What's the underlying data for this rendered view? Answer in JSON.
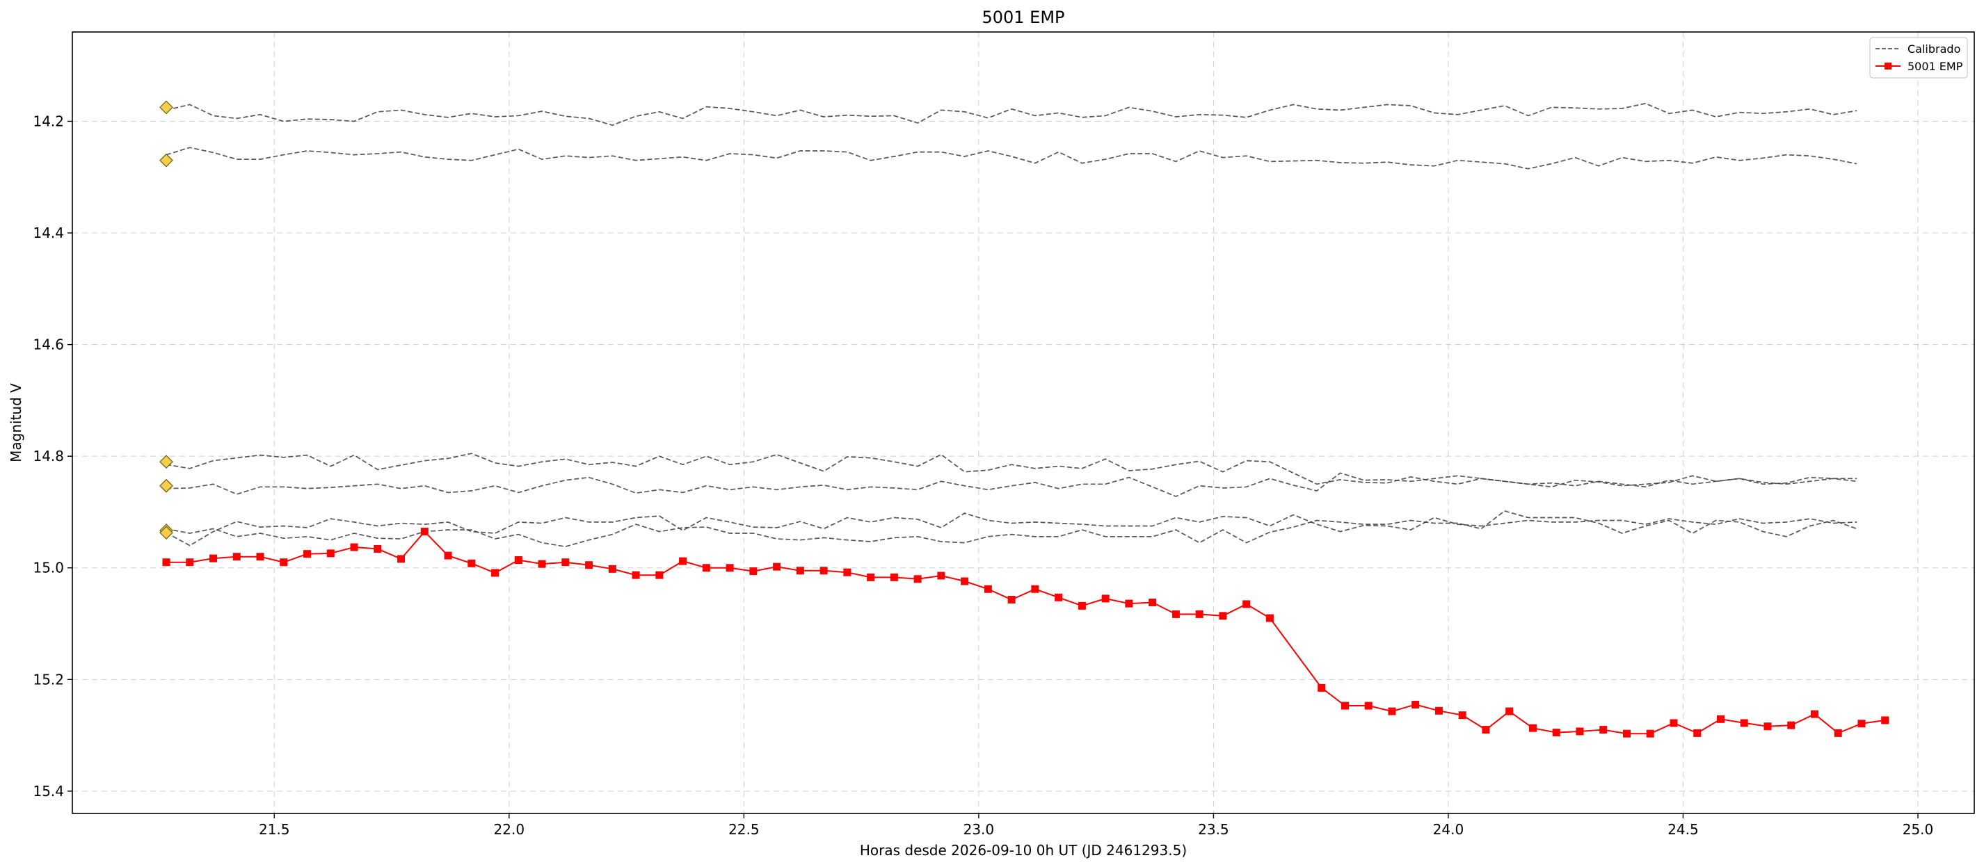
{
  "chart_data": {
    "type": "line",
    "title": "5001 EMP",
    "xlabel": "Horas desde 2026-09-10 0h UT (JD 2461293.5)",
    "ylabel": "Magnitud V",
    "xlim": [
      21.07,
      25.12
    ],
    "ylim": [
      14.04,
      15.44
    ],
    "y_inverted": true,
    "grid": true,
    "legend_position": "top-right",
    "xticks": [
      21.5,
      22.0,
      22.5,
      23.0,
      23.5,
      24.0,
      24.5,
      25.0
    ],
    "xtick_labels": [
      "21.5",
      "22.0",
      "22.5",
      "23.0",
      "23.5",
      "24.0",
      "24.5",
      "25.0"
    ],
    "yticks": [
      14.2,
      14.4,
      14.6,
      14.8,
      15.0,
      15.2,
      15.4
    ],
    "ytick_labels": [
      "14.2",
      "14.4",
      "14.6",
      "14.8",
      "15.0",
      "15.2",
      "15.4"
    ],
    "legend": [
      {
        "label": "Calibrado",
        "style": "dashed",
        "color": "#555555"
      },
      {
        "label": "5001 EMP",
        "style": "solid-square",
        "color": "#ff0000"
      }
    ],
    "x_start": 21.27,
    "x_step": 0.05,
    "target_series": {
      "name": "5001 EMP",
      "color": "#ff0000",
      "x": [
        21.27,
        21.32,
        21.37,
        21.42,
        21.47,
        21.52,
        21.57,
        21.62,
        21.67,
        21.72,
        21.77,
        21.82,
        21.87,
        21.92,
        21.97,
        22.02,
        22.07,
        22.12,
        22.17,
        22.22,
        22.27,
        22.32,
        22.37,
        22.42,
        22.47,
        22.52,
        22.57,
        22.62,
        22.67,
        22.72,
        22.77,
        22.82,
        22.87,
        22.92,
        22.97,
        23.02,
        23.07,
        23.12,
        23.17,
        23.22,
        23.27,
        23.32,
        23.37,
        23.42,
        23.47,
        23.52,
        23.57,
        23.62,
        23.73,
        23.78,
        23.83,
        23.88,
        23.93,
        23.98,
        24.03,
        24.08,
        24.13,
        24.18,
        24.23,
        24.28,
        24.33,
        24.38,
        24.43,
        24.48,
        24.53,
        24.58,
        24.63,
        24.68,
        24.73,
        24.78,
        24.83,
        24.88,
        24.93
      ],
      "y": [
        14.99,
        14.99,
        14.983,
        14.98,
        14.98,
        14.99,
        14.975,
        14.974,
        14.963,
        14.966,
        14.984,
        14.935,
        14.978,
        14.992,
        15.009,
        14.986,
        14.993,
        14.99,
        14.995,
        15.002,
        15.013,
        15.013,
        14.988,
        15.0,
        15.0,
        15.006,
        14.998,
        15.005,
        15.005,
        15.008,
        15.017,
        15.017,
        15.02,
        15.014,
        15.024,
        15.038,
        15.057,
        15.038,
        15.053,
        15.068,
        15.055,
        15.064,
        15.062,
        15.083,
        15.083,
        15.086,
        15.065,
        15.09,
        15.215,
        15.247,
        15.247,
        15.257,
        15.245,
        15.256,
        15.264,
        15.29,
        15.257,
        15.287,
        15.295,
        15.293,
        15.29,
        15.297,
        15.297,
        15.278,
        15.296,
        15.271,
        15.278,
        15.284,
        15.282,
        15.262,
        15.296,
        15.279,
        15.273
      ]
    },
    "calibrated_series": [
      {
        "name": "",
        "start_marker": 14.175,
        "y": [
          14.18,
          14.17,
          14.19,
          14.195,
          14.188,
          14.2,
          14.196,
          14.197,
          14.2,
          14.183,
          14.18,
          14.188,
          14.193,
          14.186,
          14.192,
          14.19,
          14.182,
          14.191,
          14.195,
          14.207,
          14.191,
          14.183,
          14.195,
          14.174,
          14.177,
          14.183,
          14.19,
          14.18,
          14.192,
          14.189,
          14.191,
          14.19,
          14.203,
          14.18,
          14.183,
          14.194,
          14.178,
          14.19,
          14.185,
          14.193,
          14.19,
          14.175,
          14.182,
          14.192,
          14.188,
          14.189,
          14.193,
          14.18,
          14.17,
          14.178,
          14.18,
          14.175,
          14.17,
          14.172,
          14.185,
          14.188,
          14.18,
          14.172,
          14.19,
          14.175,
          14.176,
          14.178,
          14.177,
          14.168,
          14.186,
          14.18,
          14.192,
          14.184,
          14.186,
          14.183,
          14.178,
          14.188,
          14.181
        ]
      },
      {
        "name": "",
        "start_marker": 14.27,
        "y": [
          14.26,
          14.247,
          14.256,
          14.268,
          14.268,
          14.26,
          14.253,
          14.256,
          14.26,
          14.258,
          14.255,
          14.264,
          14.268,
          14.27,
          14.26,
          14.25,
          14.268,
          14.262,
          14.265,
          14.262,
          14.27,
          14.267,
          14.264,
          14.27,
          14.258,
          14.26,
          14.266,
          14.253,
          14.253,
          14.255,
          14.27,
          14.263,
          14.255,
          14.255,
          14.263,
          14.253,
          14.263,
          14.275,
          14.255,
          14.275,
          14.268,
          14.258,
          14.258,
          14.272,
          14.253,
          14.265,
          14.262,
          14.272,
          14.271,
          14.27,
          14.274,
          14.275,
          14.273,
          14.278,
          14.28,
          14.27,
          14.273,
          14.276,
          14.285,
          14.276,
          14.265,
          14.28,
          14.265,
          14.272,
          14.27,
          14.275,
          14.264,
          14.27,
          14.266,
          14.26,
          14.262,
          14.268,
          14.276
        ]
      },
      {
        "name": "",
        "start_marker": 14.81,
        "y": [
          14.815,
          14.822,
          14.808,
          14.803,
          14.798,
          14.802,
          14.798,
          14.818,
          14.798,
          14.824,
          14.816,
          14.808,
          14.804,
          14.795,
          14.812,
          14.818,
          14.81,
          14.805,
          14.815,
          14.811,
          14.818,
          14.8,
          14.815,
          14.8,
          14.815,
          14.81,
          14.797,
          14.812,
          14.827,
          14.801,
          14.803,
          14.81,
          14.818,
          14.797,
          14.828,
          14.825,
          14.815,
          14.822,
          14.818,
          14.822,
          14.805,
          14.826,
          14.823,
          14.815,
          14.809,
          14.828,
          14.808,
          14.81,
          14.83,
          14.85,
          14.842,
          14.847,
          14.848,
          14.837,
          14.845,
          14.85,
          14.84,
          14.845,
          14.85,
          14.855,
          14.843,
          14.846,
          14.853,
          14.85,
          14.847,
          14.835,
          14.845,
          14.84,
          14.85,
          14.848,
          14.838,
          14.84,
          14.84
        ]
      },
      {
        "name": "",
        "start_marker": 14.853,
        "y": [
          14.858,
          14.857,
          14.85,
          14.868,
          14.855,
          14.855,
          14.858,
          14.856,
          14.853,
          14.85,
          14.858,
          14.853,
          14.865,
          14.862,
          14.853,
          14.865,
          14.853,
          14.843,
          14.838,
          14.85,
          14.866,
          14.86,
          14.865,
          14.853,
          14.86,
          14.855,
          14.86,
          14.855,
          14.852,
          14.86,
          14.855,
          14.857,
          14.86,
          14.845,
          14.853,
          14.86,
          14.853,
          14.847,
          14.858,
          14.85,
          14.85,
          14.838,
          14.855,
          14.872,
          14.853,
          14.857,
          14.855,
          14.84,
          14.852,
          14.862,
          14.83,
          14.843,
          14.842,
          14.845,
          14.84,
          14.835,
          14.84,
          14.845,
          14.85,
          14.848,
          14.853,
          14.845,
          14.85,
          14.855,
          14.843,
          14.85,
          14.845,
          14.84,
          14.847,
          14.85,
          14.845,
          14.84,
          14.845
        ]
      },
      {
        "name": "",
        "start_marker": 14.933,
        "y": [
          14.937,
          14.96,
          14.935,
          14.917,
          14.927,
          14.925,
          14.928,
          14.912,
          14.918,
          14.925,
          14.92,
          14.922,
          14.918,
          14.935,
          14.938,
          14.918,
          14.92,
          14.91,
          14.918,
          14.918,
          14.91,
          14.907,
          14.933,
          14.91,
          14.918,
          14.927,
          14.928,
          14.917,
          14.93,
          14.91,
          14.918,
          14.91,
          14.913,
          14.928,
          14.902,
          14.915,
          14.92,
          14.918,
          14.92,
          14.922,
          14.925,
          14.925,
          14.925,
          14.91,
          14.918,
          14.908,
          14.91,
          14.925,
          14.905,
          14.922,
          14.935,
          14.924,
          14.925,
          14.932,
          14.91,
          14.922,
          14.925,
          14.92,
          14.915,
          14.918,
          14.918,
          14.915,
          14.915,
          14.922,
          14.912,
          14.918,
          14.922,
          14.912,
          14.92,
          14.918,
          14.912,
          14.92,
          14.918
        ]
      },
      {
        "name": "",
        "start_marker": 14.937,
        "y": [
          14.93,
          14.938,
          14.93,
          14.944,
          14.938,
          14.947,
          14.944,
          14.95,
          14.938,
          14.947,
          14.948,
          14.935,
          14.932,
          14.932,
          14.948,
          14.94,
          14.955,
          14.962,
          14.95,
          14.94,
          14.922,
          14.935,
          14.928,
          14.927,
          14.938,
          14.938,
          14.948,
          14.95,
          14.946,
          14.95,
          14.953,
          14.946,
          14.944,
          14.953,
          14.955,
          14.944,
          14.94,
          14.944,
          14.944,
          14.932,
          14.944,
          14.944,
          14.944,
          14.932,
          14.955,
          14.932,
          14.955,
          14.936,
          14.927,
          14.915,
          14.918,
          14.922,
          14.922,
          14.915,
          14.92,
          14.92,
          14.93,
          14.898,
          14.91,
          14.91,
          14.91,
          14.92,
          14.938,
          14.925,
          14.915,
          14.938,
          14.915,
          14.918,
          14.935,
          14.944,
          14.925,
          14.915,
          14.93
        ]
      }
    ]
  }
}
